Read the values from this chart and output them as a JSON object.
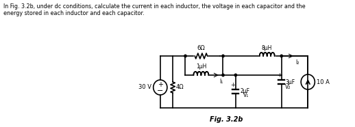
{
  "title_text": "In Fig. 3.2b, under dc conditions, calculate the current in each inductor, the voltage in each capacitor and the\nenergy stored in each inductor and each capacitor.",
  "fig_label": "Fig. 3.2b",
  "background_color": "#ffffff",
  "text_color": "#000000",
  "line_color": "#000000",
  "component_labels": {
    "resistor_top": "6Ω",
    "resistor_left": "4Ω",
    "inductor_mid": "1μH",
    "inductor_top": "8μH",
    "cap_mid": "2μF",
    "cap_right": "3μF",
    "source_left": "30 V",
    "source_right": "10 A",
    "current_1": "I₁",
    "current_2": "I₂",
    "voltage_1": "V₁",
    "voltage_2": "V₂"
  }
}
